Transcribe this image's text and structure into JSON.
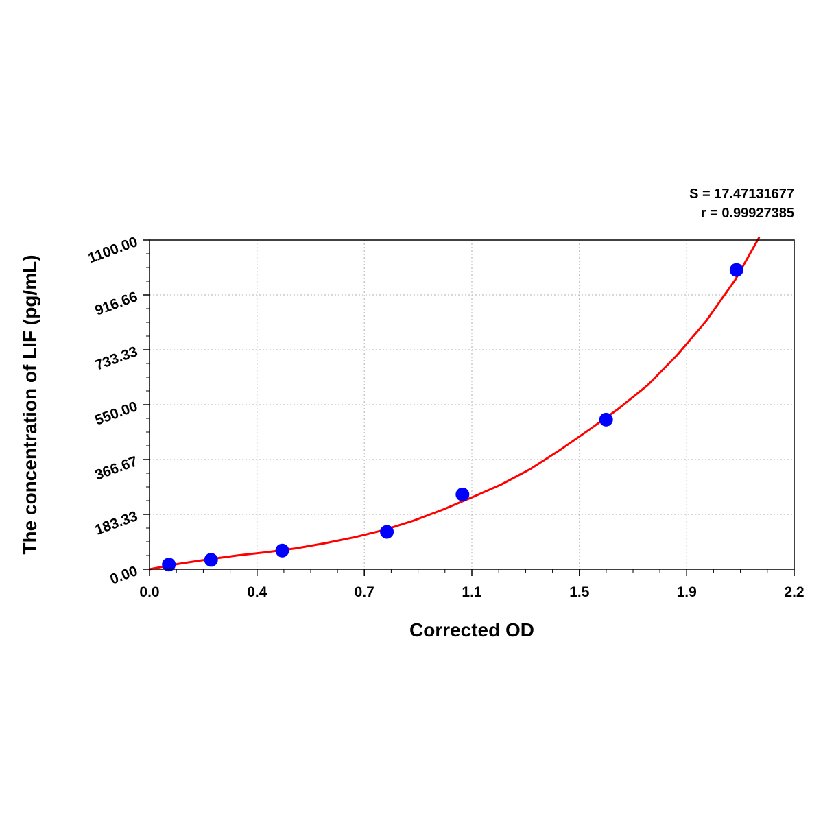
{
  "stats": {
    "s_label": "S = 17.47131677",
    "r_label": "r = 0.99927385"
  },
  "chart_data": {
    "type": "scatter",
    "xlabel": "Corrected OD",
    "ylabel": "The concentration of LIF (pg/mL)",
    "xlim": [
      0.0,
      2.2
    ],
    "ylim": [
      0.0,
      1100.0
    ],
    "x_ticks": [
      "0.0",
      "0.4",
      "0.7",
      "1.1",
      "1.5",
      "1.9",
      "2.2"
    ],
    "x_tick_values": [
      0.0,
      0.367,
      0.733,
      1.1,
      1.467,
      1.833,
      2.2
    ],
    "y_ticks": [
      "0.00",
      "183.33",
      "366.67",
      "550.00",
      "733.33",
      "916.66",
      "1100.00"
    ],
    "y_tick_values": [
      0.0,
      183.33,
      366.67,
      550.0,
      733.33,
      916.66,
      1100.0
    ],
    "grid": true,
    "series": [
      {
        "type": "scatter",
        "color": "#0000ff",
        "points": [
          {
            "x": 0.066,
            "y": 15.6
          },
          {
            "x": 0.21,
            "y": 31.25
          },
          {
            "x": 0.453,
            "y": 62.5
          },
          {
            "x": 0.81,
            "y": 125
          },
          {
            "x": 1.068,
            "y": 250
          },
          {
            "x": 1.558,
            "y": 500
          },
          {
            "x": 2.003,
            "y": 1000
          }
        ]
      },
      {
        "type": "line",
        "color": "#ff0000",
        "x": [
          0.0,
          0.1,
          0.2,
          0.3,
          0.4,
          0.5,
          0.6,
          0.7,
          0.8,
          0.9,
          1.0,
          1.1,
          1.2,
          1.3,
          1.4,
          1.5,
          1.6,
          1.7,
          1.8,
          1.9,
          2.0,
          2.08
        ],
        "y": [
          0,
          18,
          33,
          46,
          57,
          70,
          87,
          107,
          131,
          162,
          199,
          240,
          283,
          335,
          398,
          466,
          536,
          615,
          715,
          830,
          969,
          1108
        ]
      }
    ]
  }
}
